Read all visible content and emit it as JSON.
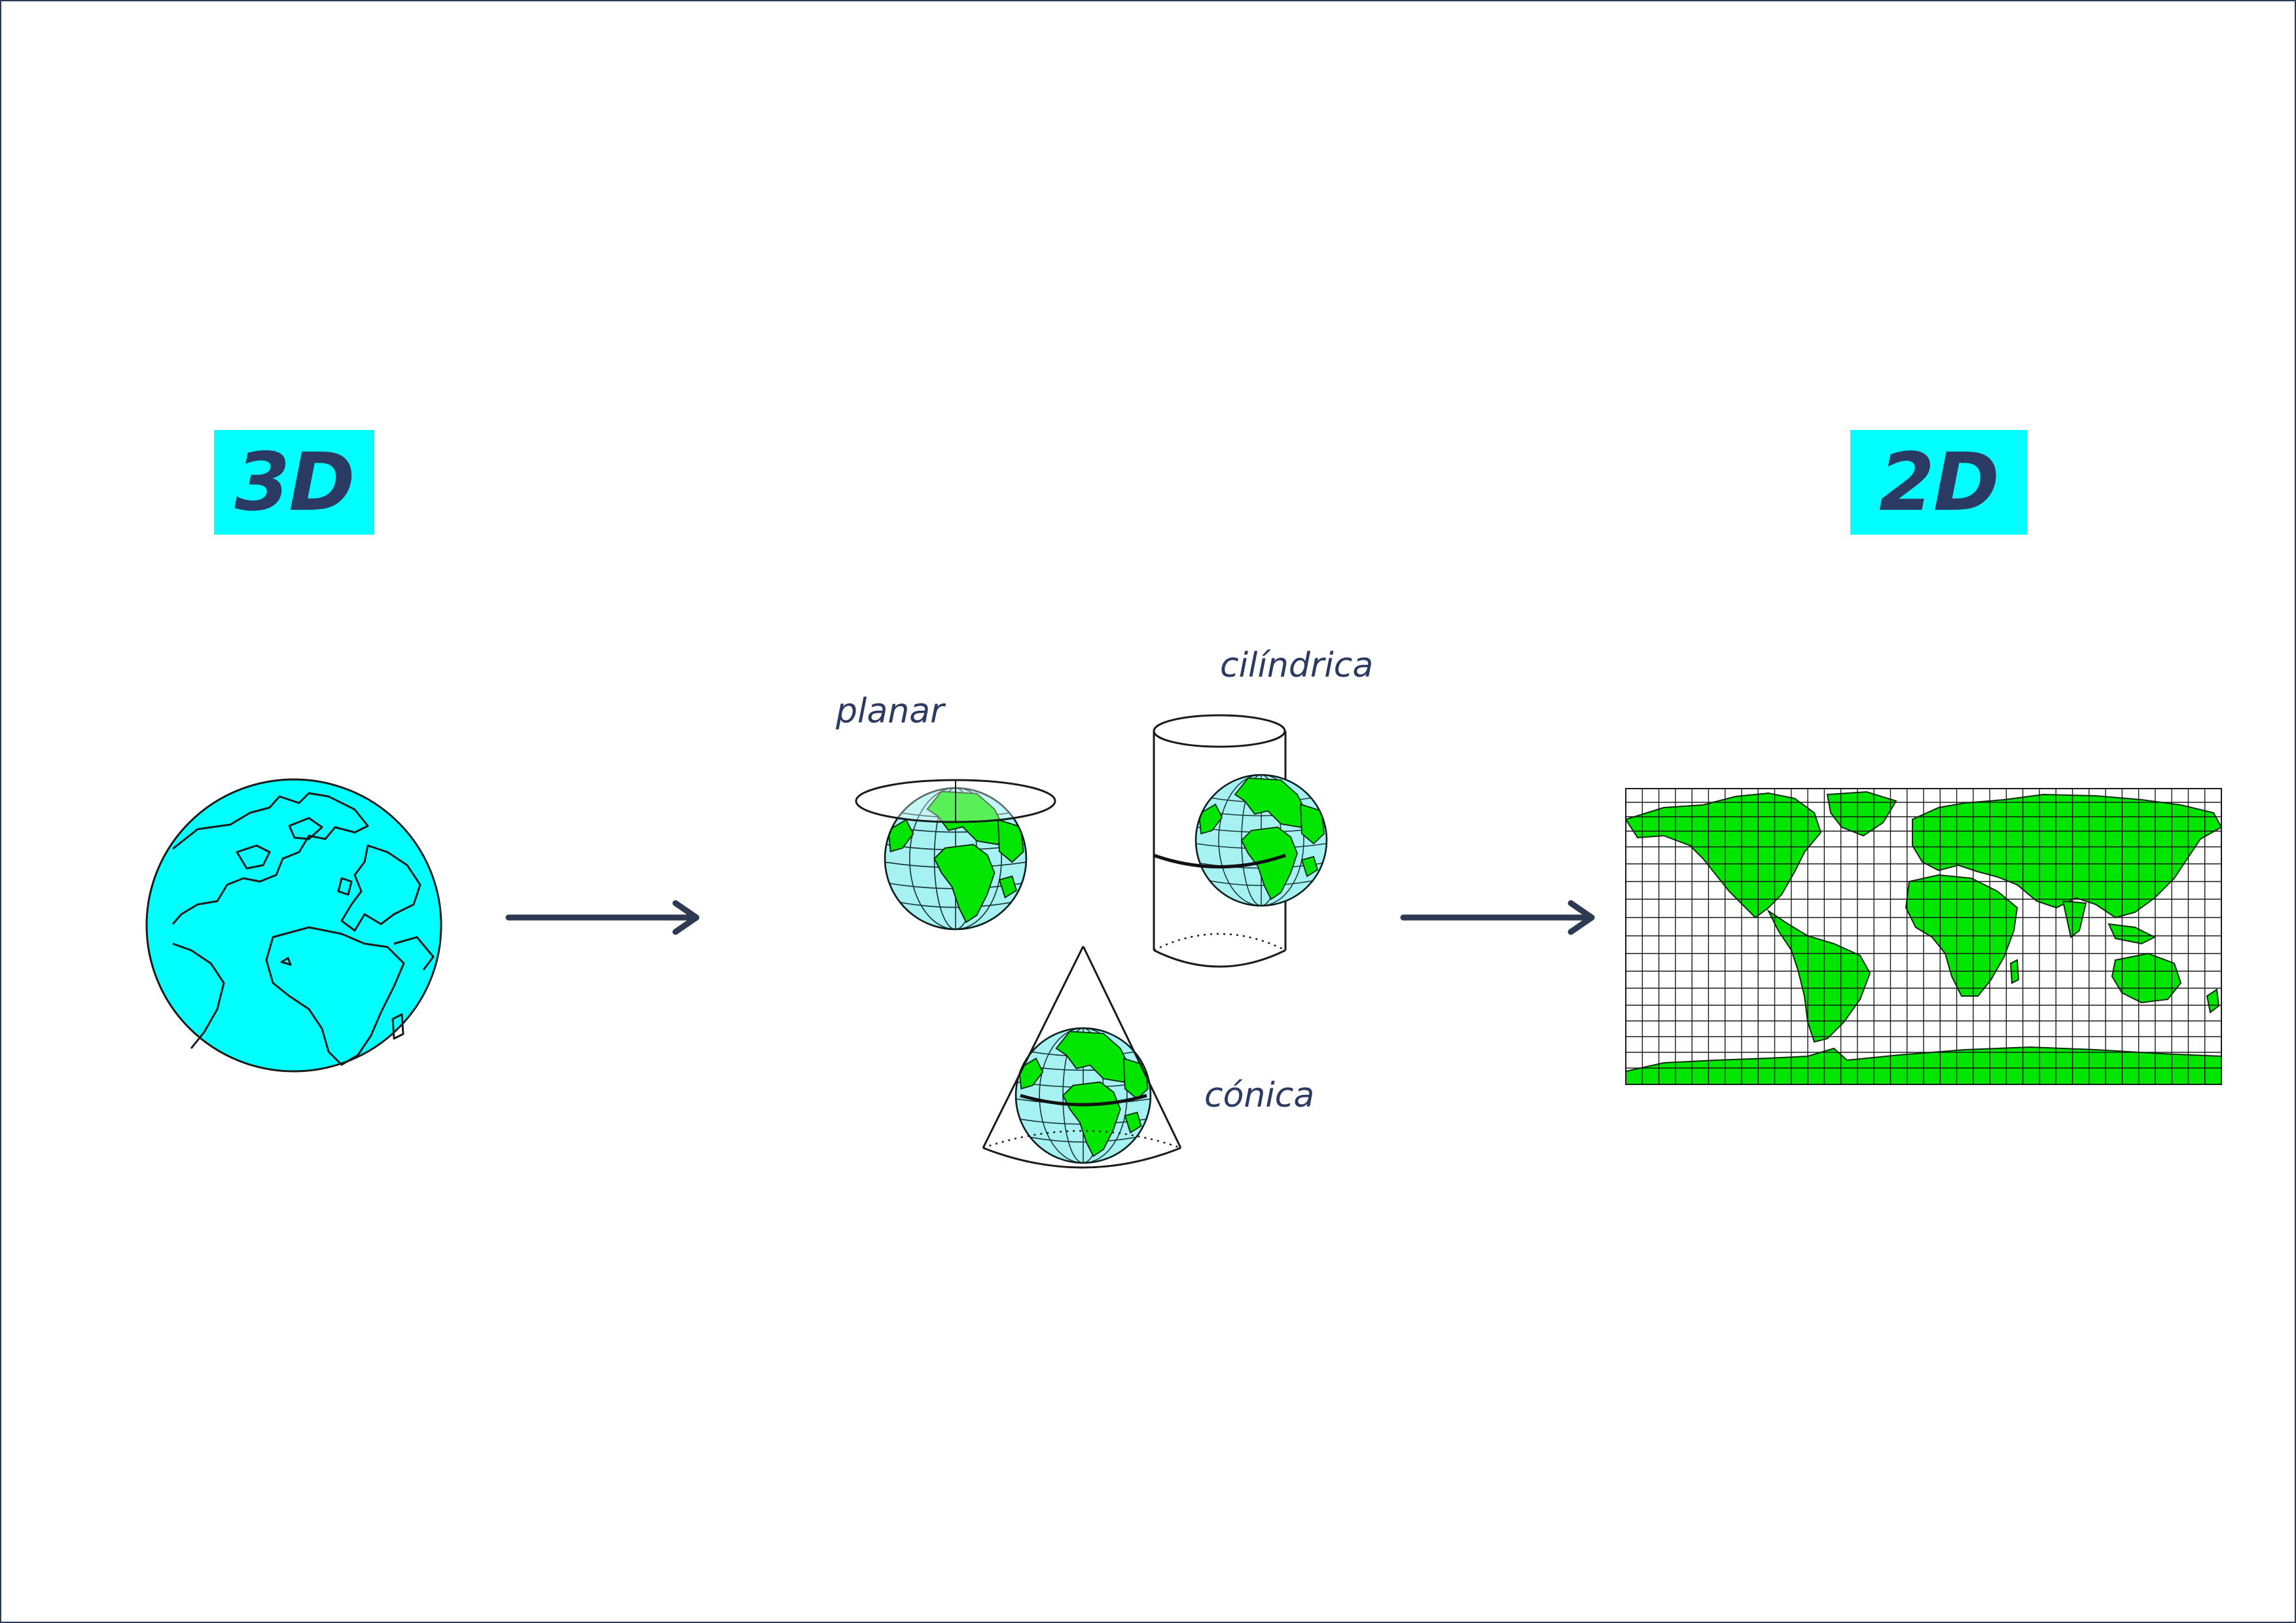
{
  "tags": {
    "left": "3D",
    "right": "2D"
  },
  "projections": {
    "planar": "planar",
    "cylindrical": "cilíndrica",
    "conic": "cónica"
  },
  "colors": {
    "tag_bg": "#00ffff",
    "text": "#2b3a63",
    "globe_3d": "#00ffff",
    "land": "#00e600",
    "ocean": "#a6f2f2",
    "arrow": "#2e3a52"
  },
  "icons": [
    "globe-3d-icon",
    "arrow-right-icon",
    "planar-projection-icon",
    "cylindrical-projection-icon",
    "conic-projection-icon",
    "world-map-2d-icon"
  ]
}
